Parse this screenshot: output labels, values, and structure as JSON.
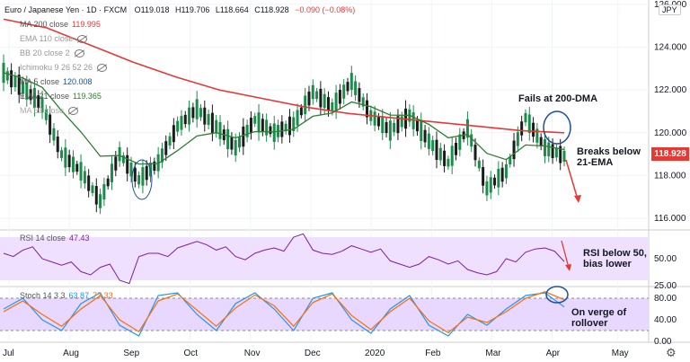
{
  "header": {
    "symbol": "Euro / Japanese Yen · 1D · FXCM",
    "open_label": "O",
    "open": "119.018",
    "high_label": "H",
    "high": "119.706",
    "low_label": "L",
    "low": "118.664",
    "close_label": "C",
    "close": "118.928",
    "change": "−0.090 (−0.08%)",
    "currency": "JPY"
  },
  "indicators": [
    {
      "label": "MA 200 close",
      "value": "119.995",
      "color": "#e53935"
    },
    {
      "label": "EMA 110 close",
      "value": "",
      "color": "#9e9e9e"
    },
    {
      "label": "BB 20 close 2",
      "value": "",
      "color": "#9e9e9e"
    },
    {
      "label": "Ichimoku 9 26 52 26",
      "value": "",
      "color": "#9e9e9e"
    },
    {
      "label": "MA 5 close",
      "value": "120.008",
      "color": "#1e4f9c"
    },
    {
      "label": "EMA 21 close",
      "value": "119.365",
      "color": "#2e7d32"
    },
    {
      "label": "MA 50 close",
      "value": "",
      "color": "#9e9e9e"
    }
  ],
  "rsi_legend": {
    "label": "RSI 14 close",
    "value": "47.43",
    "color": "#7b1fa2"
  },
  "stoch_legend": {
    "label": "Stoch 14 3 3",
    "k": "63.87",
    "d": "77.33",
    "k_color": "#2196f3",
    "d_color": "#ff6d00"
  },
  "annotations": {
    "fails": "Fails at 200-DMA",
    "breaks_1": "Breaks below",
    "breaks_2": "21-EMA",
    "rsi_1": "RSI below 50,",
    "rsi_2": "bias lower",
    "stoch_1": "On verge of",
    "stoch_2": "rollover"
  },
  "last_price": "118.928",
  "colors": {
    "up": "#1b8c4a",
    "down": "#1b1b1b",
    "ma200": "#e53935",
    "ema21": "#2e7d32",
    "ma5": "#1e4f9c",
    "rsi": "#7b1fa2",
    "rsi_band": "#efe0ff"
  },
  "chart_data": [
    {
      "type": "line",
      "title": "Euro / Japanese Yen · 1D · FXCM",
      "price_axis": {
        "ticks": [
          116.0,
          118.0,
          120.0,
          122.0,
          124.0,
          126.0
        ],
        "ylim": [
          115.5,
          126.2
        ]
      },
      "time_axis": {
        "ticks": [
          "Jul",
          "Aug",
          "Sep",
          "Oct",
          "Nov",
          "Dec",
          "2020",
          "Feb",
          "Mar",
          "Apr",
          "May"
        ]
      },
      "series": [
        {
          "name": "MA 200 close",
          "values": [
            125.3,
            124.9,
            124.1,
            123.3,
            122.6,
            122.0,
            121.6,
            121.2,
            120.9,
            120.7,
            120.5,
            120.3,
            120.1,
            120.0
          ]
        },
        {
          "name": "close",
          "values": [
            122.8,
            122.1,
            121.3,
            119.0,
            118.2,
            116.8,
            119.0,
            117.8,
            118.6,
            120.3,
            121.1,
            120.3,
            119.3,
            120.6,
            120.0,
            120.4,
            121.9,
            121.2,
            122.4,
            120.8,
            120.1,
            120.8,
            119.6,
            118.6,
            120.2,
            117.4,
            118.2,
            120.7,
            119.3,
            118.9
          ]
        }
      ]
    },
    {
      "type": "line",
      "title": "RSI 14 close",
      "ylim": [
        25,
        75
      ],
      "y_ticks": [
        50.0,
        25.0
      ],
      "band": [
        30,
        70
      ],
      "series": [
        {
          "name": "RSI 14 close",
          "values": [
            55,
            58,
            50,
            44,
            38,
            42,
            30,
            52,
            55,
            60,
            66,
            58,
            52,
            55,
            60,
            70,
            58,
            54,
            62,
            56,
            48,
            42,
            52,
            45,
            40,
            35,
            50,
            56,
            60,
            47.43
          ]
        }
      ]
    },
    {
      "type": "line",
      "title": "Stoch 14 3 3",
      "ylim": [
        0,
        100
      ],
      "y_ticks": [
        80.0,
        40.0,
        0.0
      ],
      "band": [
        20,
        80
      ],
      "series": [
        {
          "name": "%K",
          "values": [
            60,
            80,
            40,
            20,
            70,
            90,
            30,
            10,
            85,
            90,
            50,
            20,
            70,
            90,
            60,
            20,
            80,
            90,
            40,
            15,
            60,
            85,
            30,
            10,
            50,
            30,
            60,
            85,
            90,
            63.87
          ]
        },
        {
          "name": "%D",
          "values": [
            55,
            75,
            50,
            28,
            60,
            85,
            40,
            18,
            75,
            88,
            58,
            28,
            62,
            86,
            66,
            28,
            72,
            88,
            48,
            22,
            55,
            80,
            38,
            16,
            45,
            35,
            55,
            80,
            92,
            77.33
          ]
        }
      ]
    }
  ]
}
